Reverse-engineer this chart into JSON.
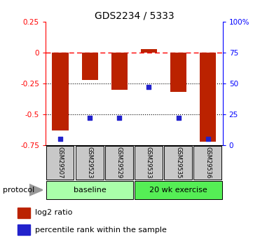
{
  "title": "GDS2234 / 5333",
  "samples": [
    "GSM29507",
    "GSM29523",
    "GSM29529",
    "GSM29533",
    "GSM29535",
    "GSM29536"
  ],
  "log2_ratios": [
    -0.63,
    -0.22,
    -0.3,
    0.03,
    -0.32,
    -0.72
  ],
  "percentile_ranks": [
    5,
    22,
    22,
    47,
    22,
    5
  ],
  "ylim_left": [
    -0.75,
    0.25
  ],
  "ylim_right": [
    0,
    100
  ],
  "right_ticks": [
    0,
    25,
    50,
    75,
    100
  ],
  "right_tick_labels": [
    "0",
    "25",
    "50",
    "75",
    "100%"
  ],
  "left_ticks": [
    -0.75,
    -0.5,
    -0.25,
    0,
    0.25
  ],
  "left_tick_labels": [
    "-0.75",
    "-0.5",
    "-0.25",
    "0",
    "0.25"
  ],
  "hlines_dotted": [
    -0.25,
    -0.5
  ],
  "hline_dashed": 0,
  "bar_color": "#bb2200",
  "dot_color": "#2222cc",
  "bar_width": 0.55,
  "group_baseline_color": "#aaffaa",
  "group_exercise_color": "#55ee55",
  "sample_box_color": "#c8c8c8"
}
